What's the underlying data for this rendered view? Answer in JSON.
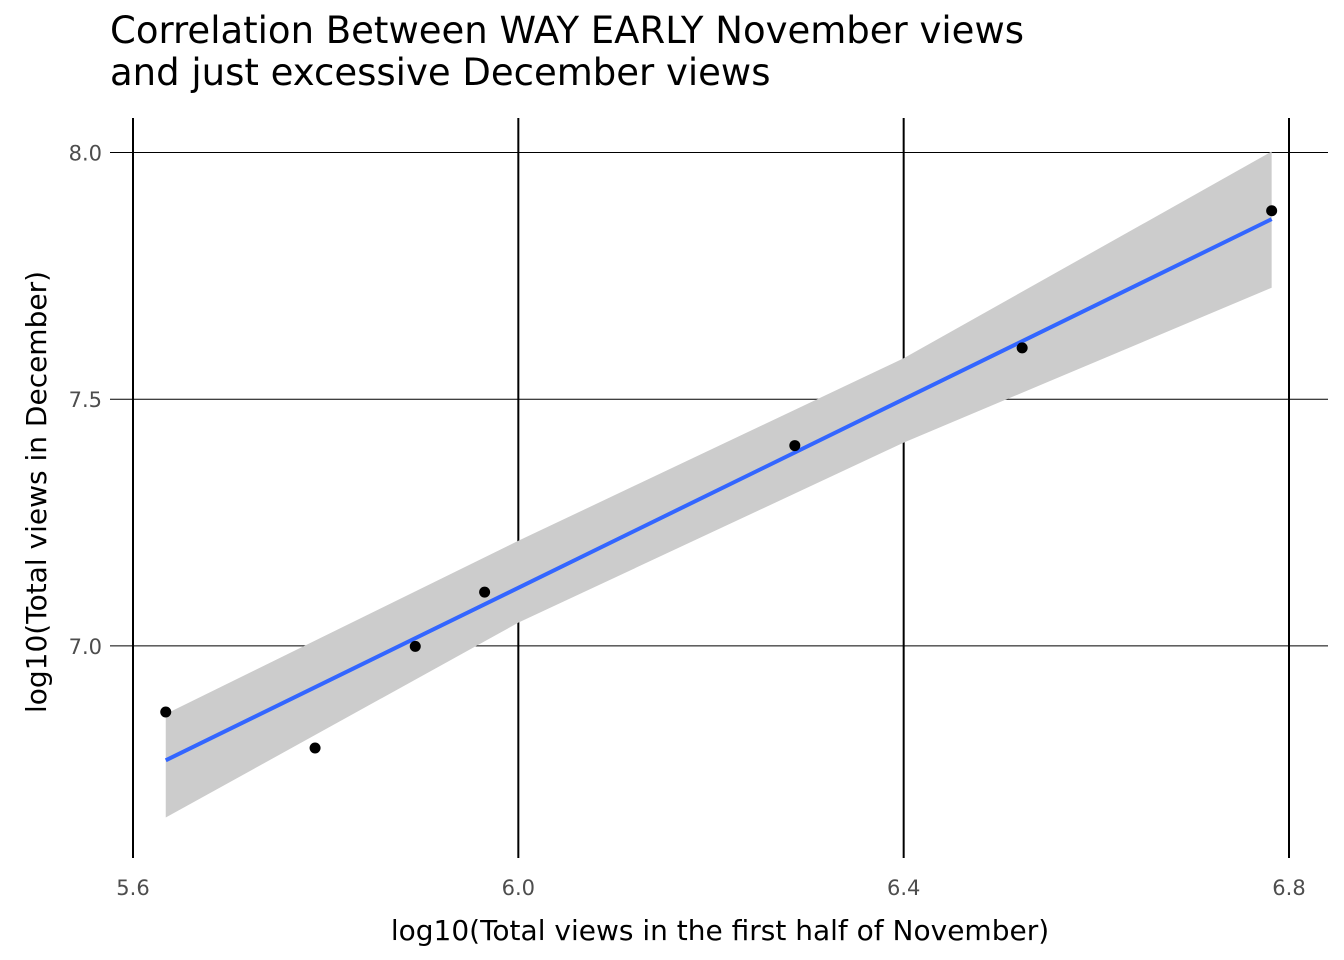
{
  "chart_data": {
    "type": "scatter",
    "title": "Correlation Between WAY EARLY November views\nand just excessive December views",
    "xlabel": "log10(Total views in the first half of November)",
    "ylabel": "log10(Total views in December)",
    "xlim": [
      5.6,
      6.8
    ],
    "ylim": [
      6.57,
      8.07
    ],
    "x_ticks": [
      5.6,
      6.0,
      6.4,
      6.8
    ],
    "x_tick_labels": [
      "5.6",
      "6.0",
      "6.4",
      "6.8"
    ],
    "y_ticks": [
      7.0,
      7.5,
      8.0
    ],
    "y_tick_labels": [
      "7.0",
      "7.5",
      "8.0"
    ],
    "grid": true,
    "points": [
      {
        "x": 5.634,
        "y": 6.866
      },
      {
        "x": 5.789,
        "y": 6.793
      },
      {
        "x": 5.893,
        "y": 6.999
      },
      {
        "x": 5.965,
        "y": 7.109
      },
      {
        "x": 6.287,
        "y": 7.406
      },
      {
        "x": 6.523,
        "y": 7.604
      },
      {
        "x": 6.782,
        "y": 7.882
      }
    ],
    "fit_line": {
      "x": [
        5.634,
        6.782
      ],
      "y": [
        6.768,
        7.865
      ],
      "color": "#3366ff"
    },
    "confidence_band": {
      "x": [
        5.634,
        6.0,
        6.4,
        6.782
      ],
      "upper": [
        6.862,
        7.213,
        7.583,
        8.002
      ],
      "lower": [
        6.652,
        7.047,
        7.412,
        7.726
      ],
      "color": "#cccccc"
    },
    "point_color": "#000000",
    "grid_color": "#000000"
  }
}
